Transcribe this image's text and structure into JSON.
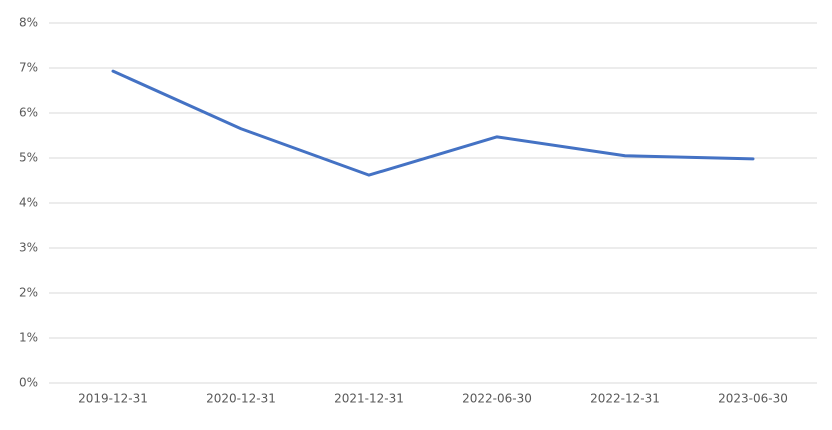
{
  "chart_data": {
    "type": "line",
    "categories": [
      "2019-12-31",
      "2020-12-31",
      "2021-12-31",
      "2022-06-30",
      "2022-12-31",
      "2023-06-30"
    ],
    "series": [
      {
        "color": "#4472c4",
        "values": [
          6.93,
          5.65,
          4.62,
          5.47,
          5.05,
          4.98
        ]
      }
    ],
    "ylim": [
      0,
      8
    ],
    "yticks": [
      {
        "value": 0,
        "label": "0%"
      },
      {
        "value": 1,
        "label": "1%"
      },
      {
        "value": 2,
        "label": "2%"
      },
      {
        "value": 3,
        "label": "3%"
      },
      {
        "value": 4,
        "label": "4%"
      },
      {
        "value": 5,
        "label": "5%"
      },
      {
        "value": 6,
        "label": "6%"
      },
      {
        "value": 7,
        "label": "7%"
      },
      {
        "value": 8,
        "label": "8%"
      }
    ],
    "grid": true
  }
}
